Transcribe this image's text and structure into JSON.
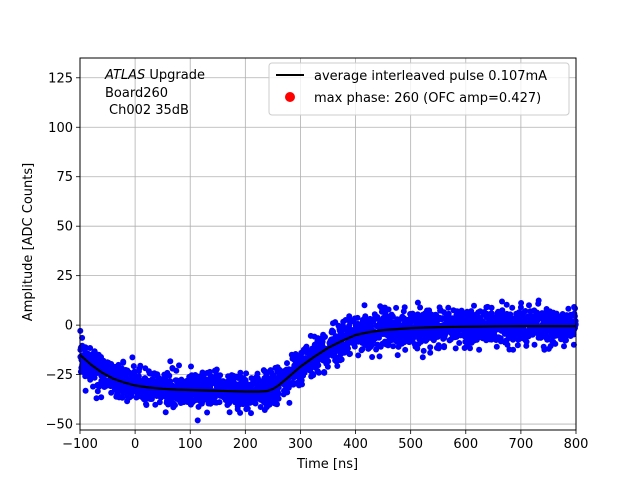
{
  "chart_data": {
    "type": "scatter",
    "title": "",
    "annotation": {
      "lines": [
        "ATLAS Upgrade",
        "Board260",
        "Ch002 35dB"
      ],
      "italic_word": "ATLAS",
      "rest_first_line": " Upgrade"
    },
    "xlabel": "Time [ns]",
    "ylabel": "Amplitude [ADC Counts]",
    "xlim": [
      -100,
      800
    ],
    "ylim": [
      -53,
      135
    ],
    "xticks": [
      -100,
      0,
      100,
      200,
      300,
      400,
      500,
      600,
      700,
      800
    ],
    "yticks": [
      -50,
      -25,
      0,
      25,
      50,
      75,
      100,
      125
    ],
    "grid": true,
    "legend_position": "top-right",
    "series": [
      {
        "name": "average interleaved pulse 0.107mA",
        "kind": "line",
        "color": "#000000",
        "x": [
          -100,
          -80,
          -60,
          -40,
          -20,
          0,
          25,
          50,
          75,
          100,
          125,
          150,
          175,
          200,
          225,
          240,
          250,
          260,
          275,
          300,
          325,
          350,
          375,
          400,
          425,
          450,
          500,
          550,
          600,
          650,
          700,
          750,
          800
        ],
        "y": [
          -15,
          -20,
          -24,
          -27,
          -29,
          -30.5,
          -31.5,
          -32.2,
          -32.6,
          -32.8,
          -33,
          -33.2,
          -33.4,
          -33.6,
          -33.6,
          -33.3,
          -32.3,
          -30.5,
          -27,
          -21,
          -16,
          -11.5,
          -8,
          -5,
          -3.5,
          -2.5,
          -1.5,
          -1,
          -0.8,
          -0.6,
          -0.5,
          -0.5,
          -0.5
        ]
      },
      {
        "name": "max phase: 260 (OFC amp=0.427)",
        "kind": "point",
        "color": "#ff0000",
        "x": [],
        "y": []
      },
      {
        "name": "",
        "kind": "scatter",
        "color": "#0000ff",
        "spread": 4.5,
        "count": 2600
      }
    ]
  }
}
